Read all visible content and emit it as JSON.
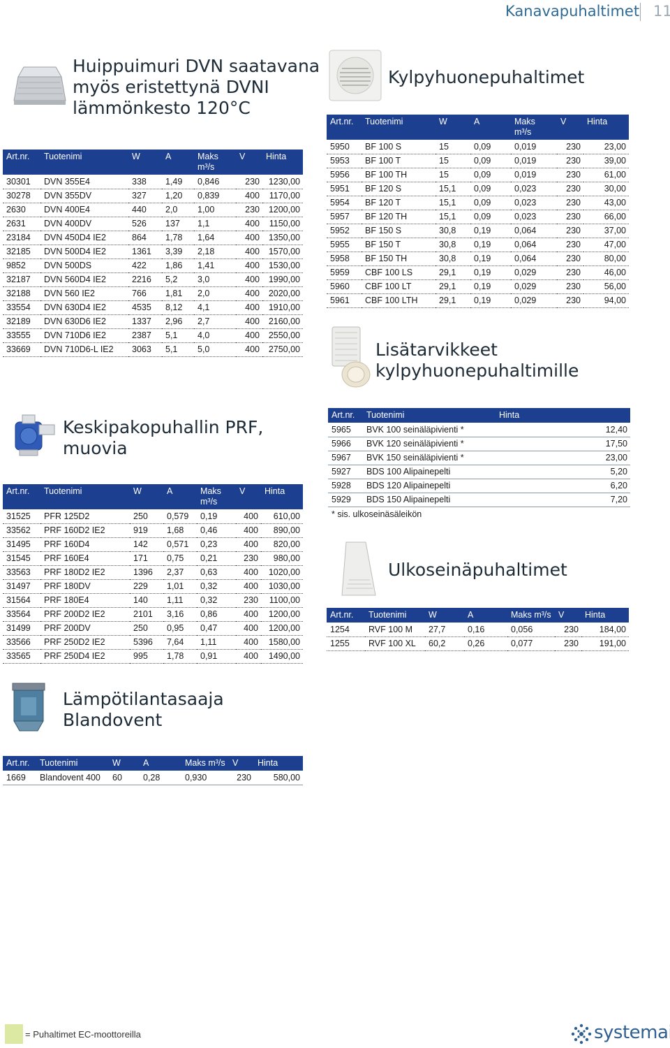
{
  "header": {
    "title": "Kanavapuhaltimet",
    "page": "11"
  },
  "sections": {
    "dvn": {
      "title": "Huippuimuri DVN saatavana\nmyös eristettynä DVNI\nlämmönkesto 120°C",
      "headers": [
        "Art.nr.",
        "Tuotenimi",
        "W",
        "A",
        "Maks m³/s",
        "V",
        "Hinta"
      ],
      "rows": [
        [
          "30301",
          "DVN 355E4",
          "338",
          "1,49",
          "0,846",
          "230",
          "1230,00"
        ],
        [
          "30278",
          "DVN 355DV",
          "327",
          "1,20",
          "0,839",
          "400",
          "1170,00"
        ],
        [
          "2630",
          "DVN 400E4",
          "440",
          "2,0",
          "1,00",
          "230",
          "1200,00"
        ],
        [
          "2631",
          "DVN 400DV",
          "526",
          "137",
          "1,1",
          "400",
          "1150,00"
        ],
        [
          "23184",
          "DVN 450D4 IE2",
          "864",
          "1,78",
          "1,64",
          "400",
          "1350,00"
        ],
        [
          "32185",
          "DVN 500D4 IE2",
          "1361",
          "3,39",
          "2,18",
          "400",
          "1570,00"
        ],
        [
          "9852",
          "DVN 500DS",
          "422",
          "1,86",
          "1,41",
          "400",
          "1530,00"
        ],
        [
          "32187",
          "DVN 560D4 IE2",
          "2216",
          "5,2",
          "3,0",
          "400",
          "1990,00"
        ],
        [
          "32188",
          "DVN 560 IE2",
          "766",
          "1,81",
          "2,0",
          "400",
          "2020,00"
        ],
        [
          "33554",
          "DVN 630D4 IE2",
          "4535",
          "8,12",
          "4,1",
          "400",
          "1910,00"
        ],
        [
          "32189",
          "DVN 630D6 IE2",
          "1337",
          "2,96",
          "2,7",
          "400",
          "2160,00"
        ],
        [
          "33555",
          "DVN 710D6 IE2",
          "2387",
          "5,1",
          "4,0",
          "400",
          "2550,00"
        ],
        [
          "33669",
          "DVN 710D6-L IE2",
          "3063",
          "5,1",
          "5,0",
          "400",
          "2750,00"
        ]
      ]
    },
    "kylpy": {
      "title": "Kylpyhuonepuhaltimet",
      "headers": [
        "Art.nr.",
        "Tuotenimi",
        "W",
        "A",
        "Maks m³/s",
        "V",
        "Hinta"
      ],
      "rows": [
        [
          "5950",
          "BF 100 S",
          "15",
          "0,09",
          "0,019",
          "230",
          "23,00"
        ],
        [
          "5953",
          "BF 100 T",
          "15",
          "0,09",
          "0,019",
          "230",
          "39,00"
        ],
        [
          "5956",
          "BF 100 TH",
          "15",
          "0,09",
          "0,019",
          "230",
          "61,00"
        ],
        [
          "5951",
          "BF 120 S",
          "15,1",
          "0,09",
          "0,023",
          "230",
          "30,00"
        ],
        [
          "5954",
          "BF 120 T",
          "15,1",
          "0,09",
          "0,023",
          "230",
          "43,00"
        ],
        [
          "5957",
          "BF 120 TH",
          "15,1",
          "0,09",
          "0,023",
          "230",
          "66,00"
        ],
        [
          "5952",
          "BF 150 S",
          "30,8",
          "0,19",
          "0,064",
          "230",
          "37,00"
        ],
        [
          "5955",
          "BF 150 T",
          "30,8",
          "0,19",
          "0,064",
          "230",
          "47,00"
        ],
        [
          "5958",
          "BF 150 TH",
          "30,8",
          "0,19",
          "0,064",
          "230",
          "80,00"
        ],
        [
          "5959",
          "CBF 100 LS",
          "29,1",
          "0,19",
          "0,029",
          "230",
          "46,00"
        ],
        [
          "5960",
          "CBF 100 LT",
          "29,1",
          "0,19",
          "0,029",
          "230",
          "56,00"
        ],
        [
          "5961",
          "CBF 100 LTH",
          "29,1",
          "0,19",
          "0,029",
          "230",
          "94,00"
        ]
      ]
    },
    "lisa": {
      "title": "Lisätarvikkeet\nkylpyhuonepuhaltimille",
      "headers": [
        "Art.nr.",
        "Tuotenimi",
        "Hinta"
      ],
      "rows": [
        [
          "5965",
          "BVK 100 seinäläpivienti *",
          "12,40"
        ],
        [
          "5966",
          "BVK 120 seinäläpivienti *",
          "17,50"
        ],
        [
          "5967",
          "BVK 150 seinäläpivienti *",
          "23,00"
        ],
        [
          "5927",
          "BDS 100 Alipainepelti",
          "5,20"
        ],
        [
          "5928",
          "BDS 120 Alipainepelti",
          "6,20"
        ],
        [
          "5929",
          "BDS 150 Alipainepelti",
          "7,20"
        ]
      ],
      "note": "* sis. ulkoseinäsäleikön"
    },
    "prf": {
      "title": "Keskipakopuhallin PRF,\nmuovia",
      "headers": [
        "Art.nr.",
        "Tuotenimi",
        "W",
        "A",
        "Maks m³/s",
        "V",
        "Hinta"
      ],
      "rows": [
        [
          "31525",
          "PFR 125D2",
          "250",
          "0,579",
          "0,19",
          "400",
          "610,00"
        ],
        [
          "33562",
          "PRF 160D2 IE2",
          "919",
          "1,68",
          "0,46",
          "400",
          "890,00"
        ],
        [
          "31495",
          "PRF 160D4",
          "142",
          "0,571",
          "0,23",
          "400",
          "820,00"
        ],
        [
          "31545",
          "PRF 160E4",
          "171",
          "0,75",
          "0,21",
          "230",
          "980,00"
        ],
        [
          "33563",
          "PRF 180D2 IE2",
          "1396",
          "2,37",
          "0,63",
          "400",
          "1020,00"
        ],
        [
          "31497",
          "PRF 180DV",
          "229",
          "1,01",
          "0,32",
          "400",
          "1030,00"
        ],
        [
          "31564",
          "PRF 180E4",
          "140",
          "1,11",
          "0,32",
          "230",
          "1100,00"
        ],
        [
          "33564",
          "PRF 200D2 IE2",
          "2101",
          "3,16",
          "0,86",
          "400",
          "1200,00"
        ],
        [
          "31499",
          "PRF 200DV",
          "250",
          "0,95",
          "0,47",
          "400",
          "1200,00"
        ],
        [
          "33566",
          "PRF 250D2 IE2",
          "5396",
          "7,64",
          "1,11",
          "400",
          "1580,00"
        ],
        [
          "33565",
          "PRF 250D4 IE2",
          "995",
          "1,78",
          "0,91",
          "400",
          "1490,00"
        ]
      ]
    },
    "ulko": {
      "title": "Ulkoseinäpuhaltimet",
      "headers": [
        "Art.nr.",
        "Tuotenimi",
        "W",
        "A",
        "Maks m³/s",
        "V",
        "Hinta"
      ],
      "rows": [
        [
          "1254",
          "RVF 100 M",
          "27,7",
          "0,16",
          "0,056",
          "230",
          "184,00"
        ],
        [
          "1255",
          "RVF 100 XL",
          "60,2",
          "0,26",
          "0,077",
          "230",
          "191,00"
        ]
      ]
    },
    "blando": {
      "title": "Lämpötilantasaaja\nBlandovent",
      "headers": [
        "Art.nr.",
        "Tuotenimi",
        "W",
        "A",
        "Maks m³/s",
        "V",
        "Hinta"
      ],
      "rows": [
        [
          "1669",
          "Blandovent 400",
          "60",
          "0,28",
          "0,930",
          "230",
          "580,00"
        ]
      ]
    }
  },
  "legend": {
    "text": "= Puhaltimet EC-moottoreilla",
    "color": "#dbe9a3"
  },
  "brand": {
    "name": "systemair",
    "color": "#2f5f8f"
  },
  "colors": {
    "table_header": "#1d3f8f",
    "header_title": "#2e6a93"
  }
}
